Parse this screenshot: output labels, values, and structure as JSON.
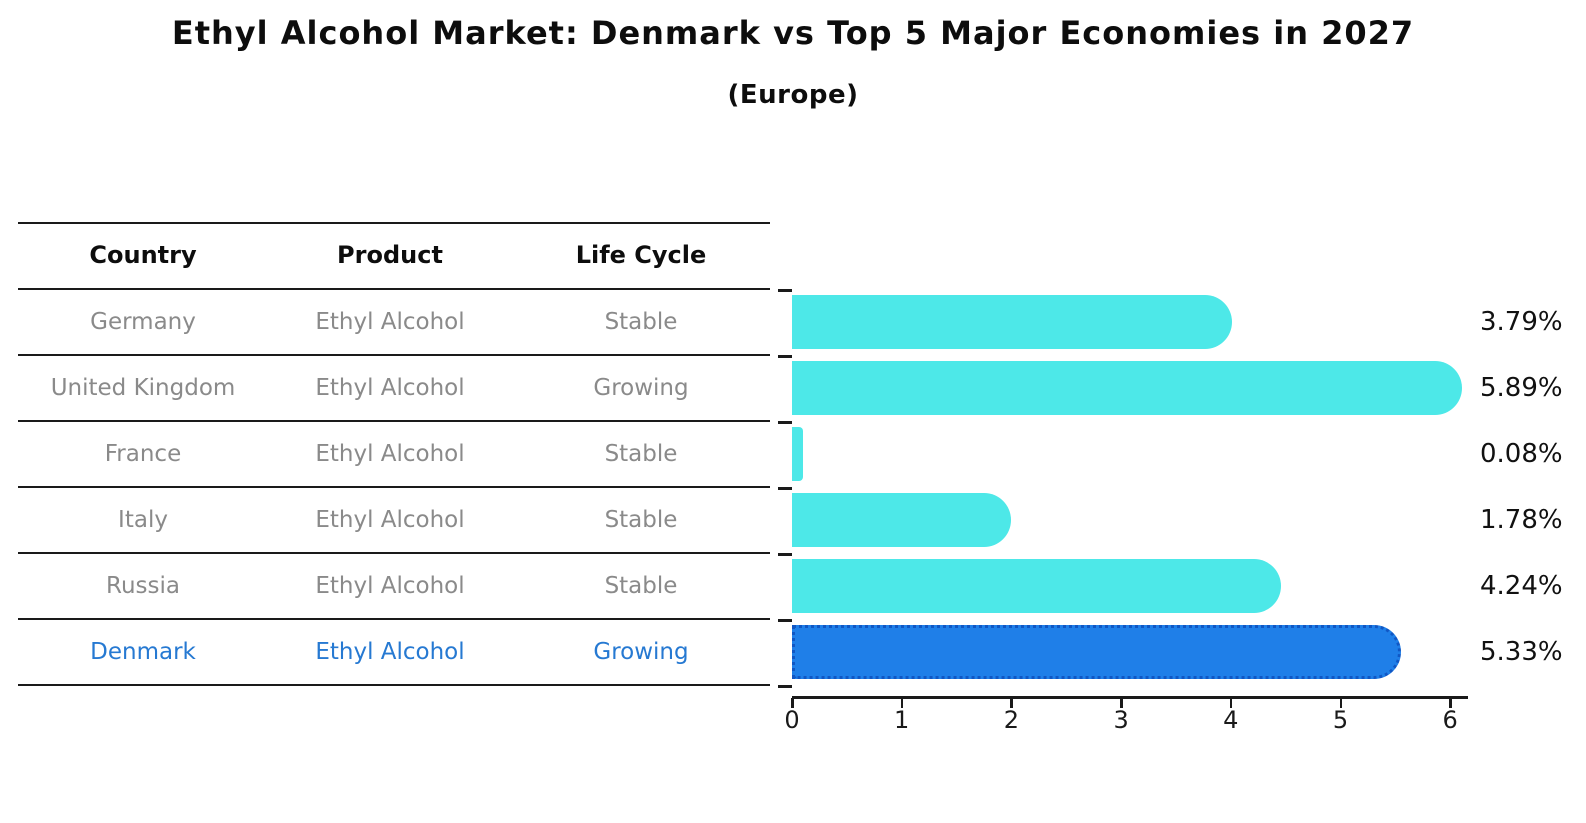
{
  "title": "Ethyl Alcohol Market: Denmark vs Top 5 Major Economies in 2027",
  "subtitle": "(Europe)",
  "table": {
    "headers": [
      "Country",
      "Product",
      "Life Cycle"
    ],
    "rows": [
      {
        "country": "Germany",
        "product": "Ethyl Alcohol",
        "life_cycle": "Stable",
        "highlighted": false
      },
      {
        "country": "United Kingdom",
        "product": "Ethyl Alcohol",
        "life_cycle": "Growing",
        "highlighted": false
      },
      {
        "country": "France",
        "product": "Ethyl Alcohol",
        "life_cycle": "Stable",
        "highlighted": false
      },
      {
        "country": "Italy",
        "product": "Ethyl Alcohol",
        "life_cycle": "Stable",
        "highlighted": false
      },
      {
        "country": "Russia",
        "product": "Ethyl Alcohol",
        "life_cycle": "Stable",
        "highlighted": false
      },
      {
        "country": "Denmark",
        "product": "Ethyl Alcohol",
        "life_cycle": "Growing",
        "highlighted": true
      }
    ]
  },
  "chart_data": {
    "type": "bar",
    "orientation": "horizontal",
    "title": "Ethyl Alcohol Market: Denmark vs Top 5 Major Economies in 2027",
    "subtitle": "(Europe)",
    "categories": [
      "Germany",
      "United Kingdom",
      "France",
      "Italy",
      "Russia",
      "Denmark"
    ],
    "values": [
      3.79,
      5.89,
      0.08,
      1.78,
      4.24,
      5.33
    ],
    "value_labels": [
      "3.79%",
      "5.89%",
      "0.08%",
      "1.78%",
      "4.24%",
      "5.33%"
    ],
    "highlight_index": 5,
    "x_ticks": [
      "0",
      "1",
      "2",
      "3",
      "4",
      "5",
      "6"
    ],
    "xlim": [
      0,
      6
    ],
    "grid": false,
    "legend": false,
    "colors": {
      "bar": "#4DE8E8",
      "highlight_bar": "#1F7FE8",
      "highlight_border": "#1057C4",
      "value_label_text": "#111111",
      "axis": "#1a1a1a",
      "table_row_text": "#8a8a8a",
      "table_highlight_text": "#2679D2"
    }
  }
}
